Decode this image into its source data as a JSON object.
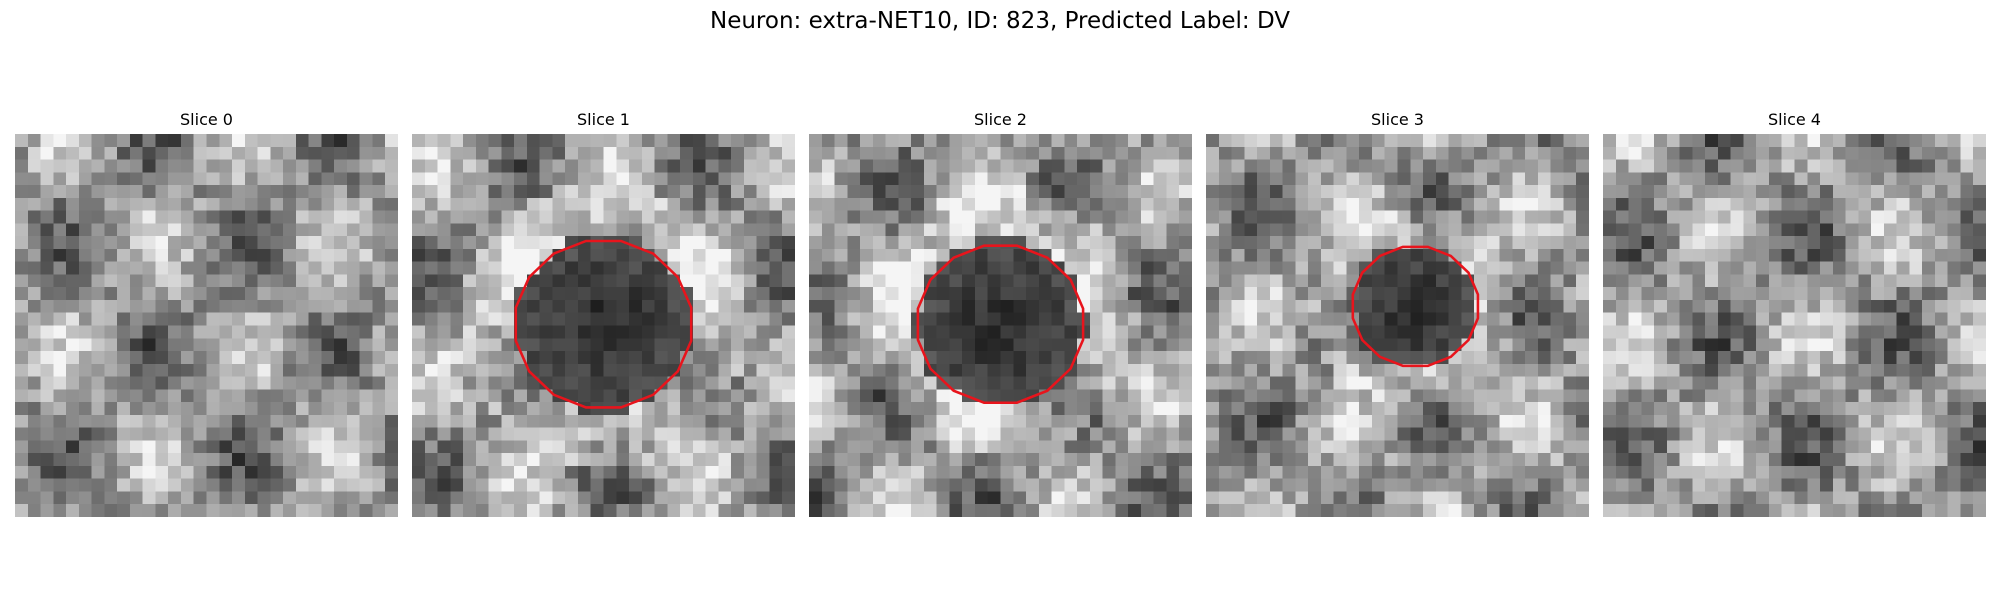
{
  "title": "Neuron: extra-NET10, ID: 823, Predicted Label: DV",
  "panels": [
    {
      "label": "Slice 0"
    },
    {
      "label": "Slice 1"
    },
    {
      "label": "Slice 2"
    },
    {
      "label": "Slice 3"
    },
    {
      "label": "Slice 4"
    }
  ]
}
